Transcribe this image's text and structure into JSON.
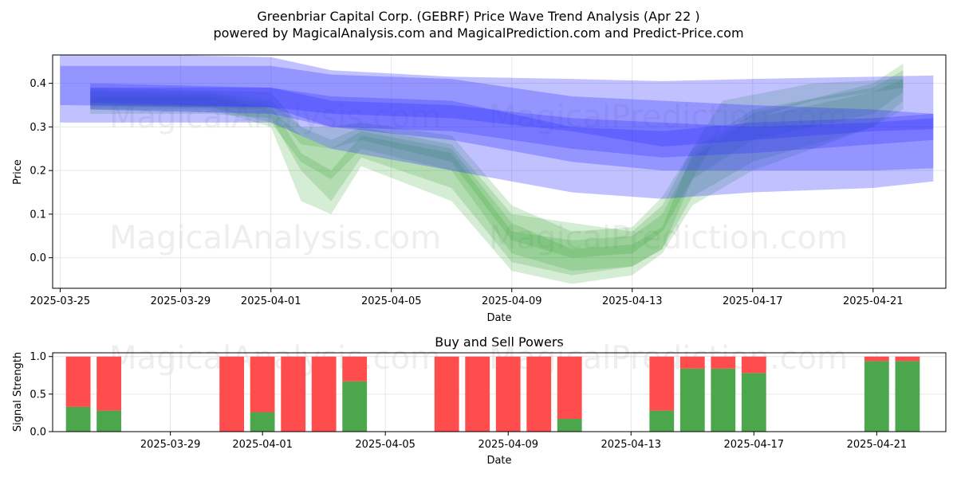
{
  "header": {
    "title_line1": "Greenbriar Capital Corp. (GEBRF) Price Wave Trend Analysis (Apr 22 )",
    "title_line2": "powered by MagicalAnalysis.com and MagicalPrediction.com and Predict-Price.com"
  },
  "watermarks": [
    "MagicalAnalysis.com",
    "MagicalPrediction.com"
  ],
  "colors": {
    "blue_band": "#3333ff",
    "green_band": "#2ca02c",
    "buy": "#4ca64c",
    "sell": "#ff4c4c",
    "grid": "#e6e6e6"
  },
  "chart_data": [
    {
      "type": "area",
      "xlabel": "Date",
      "ylabel": "Price",
      "x_ticks": [
        "2025-03-25",
        "2025-03-29",
        "2025-04-01",
        "2025-04-05",
        "2025-04-09",
        "2025-04-13",
        "2025-04-17",
        "2025-04-21"
      ],
      "y_ticks": [
        "0.0",
        "0.1",
        "0.2",
        "0.3",
        "0.4"
      ],
      "x_range": [
        "2025-03-24T18:00",
        "2025-04-23T10:00"
      ],
      "ylim": [
        -0.07,
        0.465
      ],
      "grid": true,
      "blue_bands": [
        {
          "x": [
            "2025-03-25",
            "2025-04-01",
            "2025-04-03",
            "2025-04-07",
            "2025-04-11",
            "2025-04-14",
            "2025-04-17",
            "2025-04-21",
            "2025-04-23"
          ],
          "upper": [
            0.47,
            0.46,
            0.43,
            0.415,
            0.41,
            0.405,
            0.41,
            0.415,
            0.418
          ],
          "lower": [
            0.31,
            0.31,
            0.25,
            0.2,
            0.15,
            0.135,
            0.15,
            0.16,
            0.175
          ]
        },
        {
          "x": [
            "2025-03-25",
            "2025-04-01",
            "2025-04-03",
            "2025-04-07",
            "2025-04-11",
            "2025-04-14",
            "2025-04-17",
            "2025-04-21",
            "2025-04-23"
          ],
          "upper": [
            0.44,
            0.44,
            0.42,
            0.41,
            0.37,
            0.36,
            0.35,
            0.34,
            0.33
          ],
          "lower": [
            0.35,
            0.345,
            0.33,
            0.32,
            0.29,
            0.255,
            0.27,
            0.29,
            0.295
          ]
        },
        {
          "x": [
            "2025-03-26",
            "2025-04-01",
            "2025-04-03",
            "2025-04-07",
            "2025-04-11",
            "2025-04-14",
            "2025-04-17",
            "2025-04-21",
            "2025-04-23"
          ],
          "upper": [
            0.39,
            0.39,
            0.37,
            0.36,
            0.3,
            0.29,
            0.31,
            0.32,
            0.33
          ],
          "lower": [
            0.34,
            0.33,
            0.3,
            0.27,
            0.22,
            0.2,
            0.2,
            0.2,
            0.205
          ]
        },
        {
          "x": [
            "2025-03-26",
            "2025-04-01",
            "2025-04-03",
            "2025-04-07",
            "2025-04-11",
            "2025-04-14",
            "2025-04-17",
            "2025-04-21",
            "2025-04-23"
          ],
          "upper": [
            0.4,
            0.39,
            0.36,
            0.35,
            0.32,
            0.31,
            0.3,
            0.31,
            0.32
          ],
          "lower": [
            0.355,
            0.345,
            0.3,
            0.29,
            0.25,
            0.23,
            0.24,
            0.26,
            0.27
          ]
        }
      ],
      "green_bands": [
        {
          "x": [
            "2025-03-26",
            "2025-03-30",
            "2025-04-01",
            "2025-04-02",
            "2025-04-03",
            "2025-04-04",
            "2025-04-07",
            "2025-04-09",
            "2025-04-11",
            "2025-04-13",
            "2025-04-14",
            "2025-04-15",
            "2025-04-17",
            "2025-04-21",
            "2025-04-22"
          ],
          "upper": [
            0.385,
            0.38,
            0.36,
            0.3,
            0.27,
            0.3,
            0.26,
            0.1,
            0.08,
            0.06,
            0.12,
            0.25,
            0.34,
            0.39,
            0.43
          ],
          "lower": [
            0.33,
            0.33,
            0.32,
            0.2,
            0.13,
            0.23,
            0.16,
            -0.01,
            -0.04,
            -0.02,
            0.02,
            0.14,
            0.22,
            0.3,
            0.36
          ]
        },
        {
          "x": [
            "2025-03-26",
            "2025-03-30",
            "2025-04-01",
            "2025-04-02",
            "2025-04-03",
            "2025-04-04",
            "2025-04-07",
            "2025-04-09",
            "2025-04-11",
            "2025-04-13",
            "2025-04-14",
            "2025-04-15",
            "2025-04-17",
            "2025-04-21",
            "2025-04-22"
          ],
          "upper": [
            0.38,
            0.375,
            0.35,
            0.24,
            0.2,
            0.28,
            0.24,
            0.06,
            0.04,
            0.05,
            0.1,
            0.23,
            0.32,
            0.38,
            0.41
          ],
          "lower": [
            0.34,
            0.34,
            0.3,
            0.13,
            0.1,
            0.21,
            0.13,
            -0.03,
            -0.06,
            -0.04,
            0.01,
            0.12,
            0.2,
            0.3,
            0.34
          ]
        },
        {
          "x": [
            "2025-03-26",
            "2025-03-30",
            "2025-04-01",
            "2025-04-02",
            "2025-04-03",
            "2025-04-04",
            "2025-04-07",
            "2025-04-09",
            "2025-04-11",
            "2025-04-13",
            "2025-04-14",
            "2025-04-15",
            "2025-04-17",
            "2025-04-21",
            "2025-04-22"
          ],
          "upper": [
            0.37,
            0.37,
            0.34,
            0.28,
            0.25,
            0.29,
            0.25,
            0.08,
            0.02,
            0.03,
            0.07,
            0.24,
            0.33,
            0.4,
            0.445
          ],
          "lower": [
            0.345,
            0.345,
            0.31,
            0.22,
            0.18,
            0.25,
            0.2,
            0.01,
            -0.03,
            -0.02,
            0.02,
            0.18,
            0.27,
            0.33,
            0.38
          ]
        },
        {
          "x": [
            "2025-03-26",
            "2025-04-01",
            "2025-04-02",
            "2025-04-03",
            "2025-04-04",
            "2025-04-07",
            "2025-04-09",
            "2025-04-11",
            "2025-04-13",
            "2025-04-14",
            "2025-04-16",
            "2025-04-19",
            "2025-04-22"
          ],
          "upper": [
            0.39,
            0.38,
            0.3,
            0.3,
            0.31,
            0.28,
            0.12,
            0.06,
            0.07,
            0.14,
            0.36,
            0.4,
            0.41
          ],
          "lower": [
            0.35,
            0.34,
            0.26,
            0.25,
            0.27,
            0.22,
            0.04,
            0.0,
            0.01,
            0.06,
            0.3,
            0.36,
            0.39
          ]
        }
      ]
    },
    {
      "type": "bar",
      "title": "Buy and Sell Powers",
      "xlabel": "Date",
      "ylabel": "Signal Strength",
      "x_ticks": [
        "2025-03-29",
        "2025-04-01",
        "2025-04-05",
        "2025-04-09",
        "2025-04-13",
        "2025-04-17",
        "2025-04-21"
      ],
      "y_ticks": [
        "0.0",
        "0.5",
        "1.0"
      ],
      "x_range": [
        "2025-03-25T04:00",
        "2025-04-23T06:00"
      ],
      "ylim": [
        0,
        1.05
      ],
      "categories": [
        "2025-03-26",
        "2025-03-27",
        "2025-03-31",
        "2025-04-01",
        "2025-04-02",
        "2025-04-03",
        "2025-04-04",
        "2025-04-07",
        "2025-04-08",
        "2025-04-09",
        "2025-04-10",
        "2025-04-11",
        "2025-04-14",
        "2025-04-15",
        "2025-04-16",
        "2025-04-17",
        "2025-04-21",
        "2025-04-22"
      ],
      "series": [
        {
          "name": "Buy",
          "values": [
            0.33,
            0.28,
            0.0,
            0.26,
            0.0,
            0.0,
            0.67,
            0.0,
            0.0,
            0.0,
            0.0,
            0.17,
            0.28,
            0.84,
            0.84,
            0.78,
            0.94,
            0.94
          ]
        },
        {
          "name": "Sell",
          "values": [
            0.67,
            0.72,
            1.0,
            0.74,
            1.0,
            1.0,
            0.33,
            1.0,
            1.0,
            1.0,
            1.0,
            0.83,
            0.72,
            0.16,
            0.16,
            0.22,
            0.06,
            0.06
          ]
        }
      ]
    }
  ]
}
